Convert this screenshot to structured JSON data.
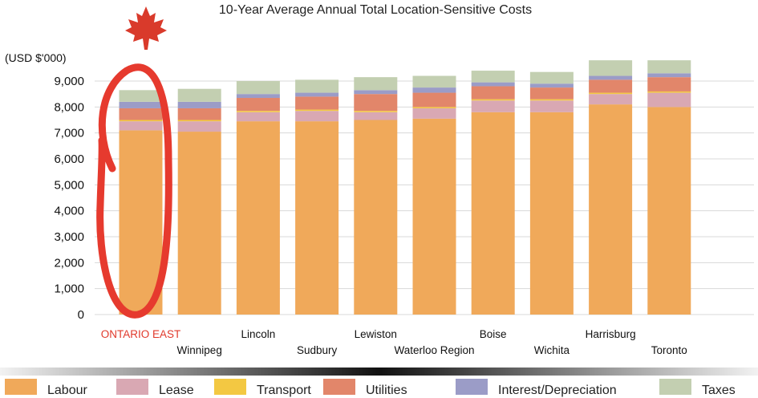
{
  "chart_data": {
    "type": "bar",
    "stacked": true,
    "title": "10-Year Average Annual Total Location-Sensitive Costs",
    "ylabel": "(USD $'000)",
    "xlabel": "",
    "ylim": [
      0,
      9500
    ],
    "yticks": [
      "0",
      "1,000",
      "2,000",
      "3,000",
      "4,000",
      "5,000",
      "6,000",
      "7,000",
      "8,000",
      "9,000"
    ],
    "ytick_values": [
      0,
      1000,
      2000,
      3000,
      4000,
      5000,
      6000,
      7000,
      8000,
      9000
    ],
    "grid": true,
    "legend_position": "bottom",
    "highlight_category": "ONTARIO EAST",
    "categories": [
      "ONTARIO EAST",
      "Winnipeg",
      "Lincoln",
      "Sudbury",
      "Lewiston",
      "Waterloo Region",
      "Boise",
      "Wichita",
      "Harrisburg",
      "Toronto"
    ],
    "series": [
      {
        "name": "Labour",
        "color": "#f0a95a",
        "values": [
          7100,
          7050,
          7450,
          7450,
          7500,
          7550,
          7800,
          7800,
          8100,
          8000
        ]
      },
      {
        "name": "Lease",
        "color": "#d9a8b3",
        "values": [
          350,
          400,
          350,
          400,
          300,
          400,
          450,
          450,
          400,
          550
        ]
      },
      {
        "name": "Transport",
        "color": "#f3c842",
        "values": [
          50,
          50,
          50,
          50,
          50,
          50,
          50,
          50,
          50,
          50
        ]
      },
      {
        "name": "Utilities",
        "color": "#e2866a",
        "values": [
          450,
          450,
          500,
          500,
          650,
          550,
          500,
          450,
          500,
          550
        ]
      },
      {
        "name": "Interest/Depreciation",
        "color": "#9b9cc7",
        "values": [
          250,
          250,
          150,
          150,
          150,
          200,
          150,
          150,
          150,
          150
        ]
      },
      {
        "name": "Taxes",
        "color": "#c3cfb1",
        "values": [
          450,
          500,
          500,
          500,
          500,
          450,
          450,
          450,
          600,
          500
        ]
      }
    ]
  }
}
